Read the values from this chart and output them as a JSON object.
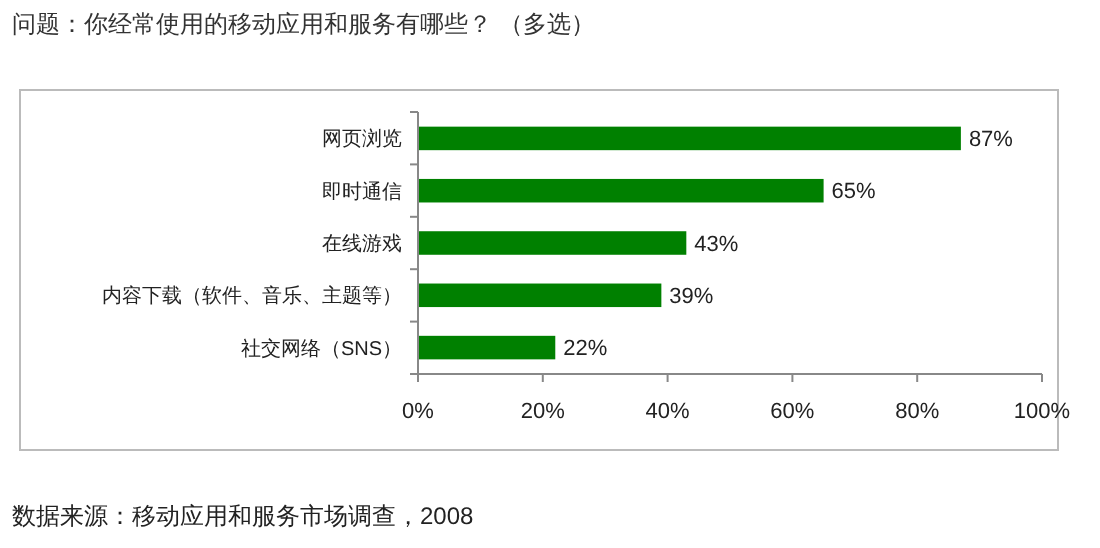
{
  "chart_data": {
    "type": "bar",
    "orientation": "horizontal",
    "title": "问题：你经常使用的移动应用和服务有哪些？ （多选）",
    "categories": [
      "网页浏览",
      "即时通信",
      "在线游戏",
      "内容下载（软件、音乐、主题等）",
      "社交网络（SNS）"
    ],
    "values": [
      87,
      65,
      43,
      39,
      22
    ],
    "color": "#008000",
    "value_labels": [
      "87%",
      "65%",
      "43%",
      "39%",
      "22%"
    ],
    "xlim": [
      0,
      100
    ],
    "xticks": [
      {
        "value": 0,
        "label": "0%"
      },
      {
        "value": 20,
        "label": "20%"
      },
      {
        "value": 40,
        "label": "40%"
      },
      {
        "value": 60,
        "label": "60%"
      },
      {
        "value": 80,
        "label": "80%"
      },
      {
        "value": 100,
        "label": "100%"
      }
    ],
    "annotations": [
      "数据来源：移动应用和服务市场调查，2008"
    ]
  }
}
